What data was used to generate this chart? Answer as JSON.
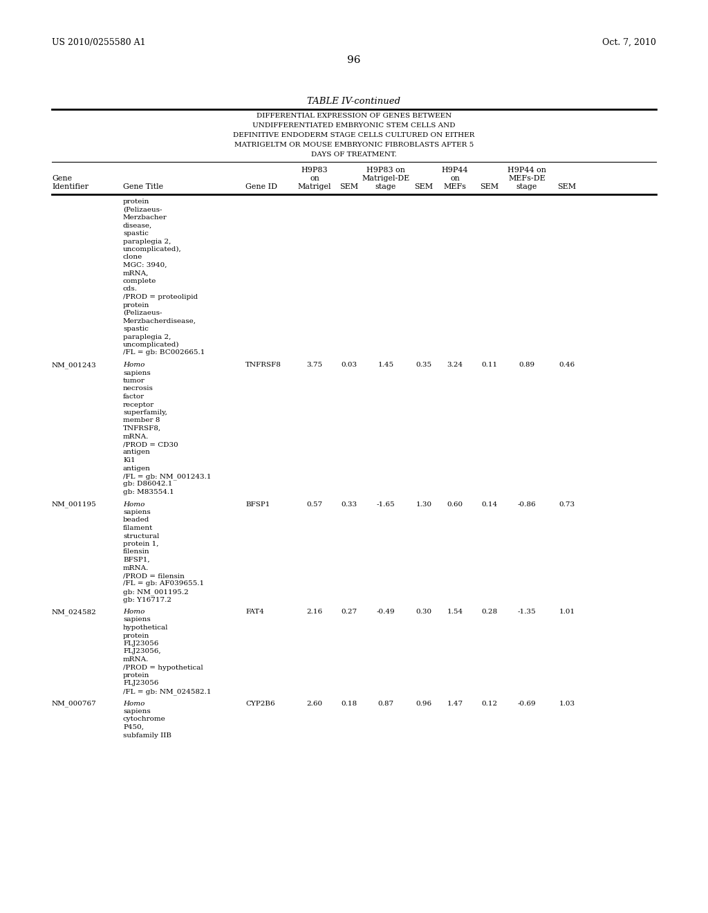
{
  "page_number": "96",
  "patent_left": "US 2010/0255580 A1",
  "patent_right": "Oct. 7, 2010",
  "table_title": "TABLE IV-continued",
  "table_subtitle_lines": [
    "DIFFERENTIAL EXPRESSION OF GENES BETWEEN",
    "UNDIFFERENTIATED EMBRYONIC STEM CELLS AND",
    "DEFINITIVE ENDODERM STAGE CELLS CULTURED ON EITHER",
    "MATRIGELTM OR MOUSE EMBRYONIC FIBROBLASTS AFTER 5",
    "DAYS OF TREATMENT."
  ],
  "col_headers": {
    "gene_id_label": [
      "Gene",
      "Identifier"
    ],
    "gene_title_label": [
      "Gene Title"
    ],
    "gene_symbol_label": [
      "Gene ID"
    ],
    "h9p83_matrigel": [
      "H9P83",
      "on",
      "Matrigel"
    ],
    "sem1": [
      "SEM"
    ],
    "h9p83_de": [
      "H9P83 on",
      "Matrigel-DE",
      "stage"
    ],
    "sem2": [
      "SEM"
    ],
    "h9p44_mefs": [
      "H9P44",
      "on",
      "MEFs"
    ],
    "sem3": [
      "SEM"
    ],
    "h9p44_de": [
      "H9P44 on",
      "MEFs-DE",
      "stage"
    ],
    "sem4": [
      "SEM"
    ]
  },
  "rows": [
    {
      "gene_id": "",
      "gene_title_lines": [
        "protein",
        "(Pelizaeus-",
        "Merzbacher",
        "disease,",
        "spastic",
        "paraplegia 2,",
        "uncomplicated),",
        "clone",
        "MGC: 3940,",
        "mRNA,",
        "complete",
        "cds.",
        "/PROD = proteolipid",
        "protein",
        "(Pelizaeus-",
        "Merzbacherdisease,",
        "spastic",
        "paraplegia 2,",
        "uncomplicated)",
        "/FL = gb: BC002665.1"
      ],
      "italic_first": false,
      "gene_symbol": "",
      "values": [
        "",
        "",
        "",
        "",
        "",
        "",
        "",
        ""
      ]
    },
    {
      "gene_id": "NM_001243",
      "gene_title_lines": [
        "Homo",
        "sapiens",
        "tumor",
        "necrosis",
        "factor",
        "receptor",
        "superfamily,",
        "member 8",
        "TNFRSF8,",
        "mRNA.",
        "/PROD = CD30",
        "antigen",
        "Ki1",
        "antigen",
        "/FL = gb: NM_001243.1",
        "gb: D86042.1",
        "gb: M83554.1"
      ],
      "italic_first": true,
      "gene_symbol": "TNFRSF8",
      "values": [
        "3.75",
        "0.03",
        "1.45",
        "0.35",
        "3.24",
        "0.11",
        "0.89",
        "0.46"
      ]
    },
    {
      "gene_id": "NM_001195",
      "gene_title_lines": [
        "Homo",
        "sapiens",
        "beaded",
        "filament",
        "structural",
        "protein 1,",
        "filensin",
        "BFSP1,",
        "mRNA.",
        "/PROD = filensin",
        "/FL = gb: AF039655.1",
        "gb: NM_001195.2",
        "gb: Y16717.2"
      ],
      "italic_first": true,
      "gene_symbol": "BFSP1",
      "values": [
        "0.57",
        "0.33",
        "-1.65",
        "1.30",
        "0.60",
        "0.14",
        "-0.86",
        "0.73"
      ]
    },
    {
      "gene_id": "NM_024582",
      "gene_title_lines": [
        "Homo",
        "sapiens",
        "hypothetical",
        "protein",
        "FLJ23056",
        "FLJ23056,",
        "mRNA.",
        "/PROD = hypothetical",
        "protein",
        "FLJ23056",
        "/FL = gb: NM_024582.1"
      ],
      "italic_first": true,
      "gene_symbol": "FAT4",
      "values": [
        "2.16",
        "0.27",
        "-0.49",
        "0.30",
        "1.54",
        "0.28",
        "-1.35",
        "1.01"
      ]
    },
    {
      "gene_id": "NM_000767",
      "gene_title_lines": [
        "Homo",
        "sapiens",
        "cytochrome",
        "P450,",
        "subfamily IIB"
      ],
      "italic_first": true,
      "gene_symbol": "CYP2B6",
      "values": [
        "2.60",
        "0.18",
        "0.87",
        "0.96",
        "1.47",
        "0.12",
        "-0.69",
        "1.03"
      ]
    }
  ],
  "background_color": "#ffffff",
  "text_color": "#000000"
}
